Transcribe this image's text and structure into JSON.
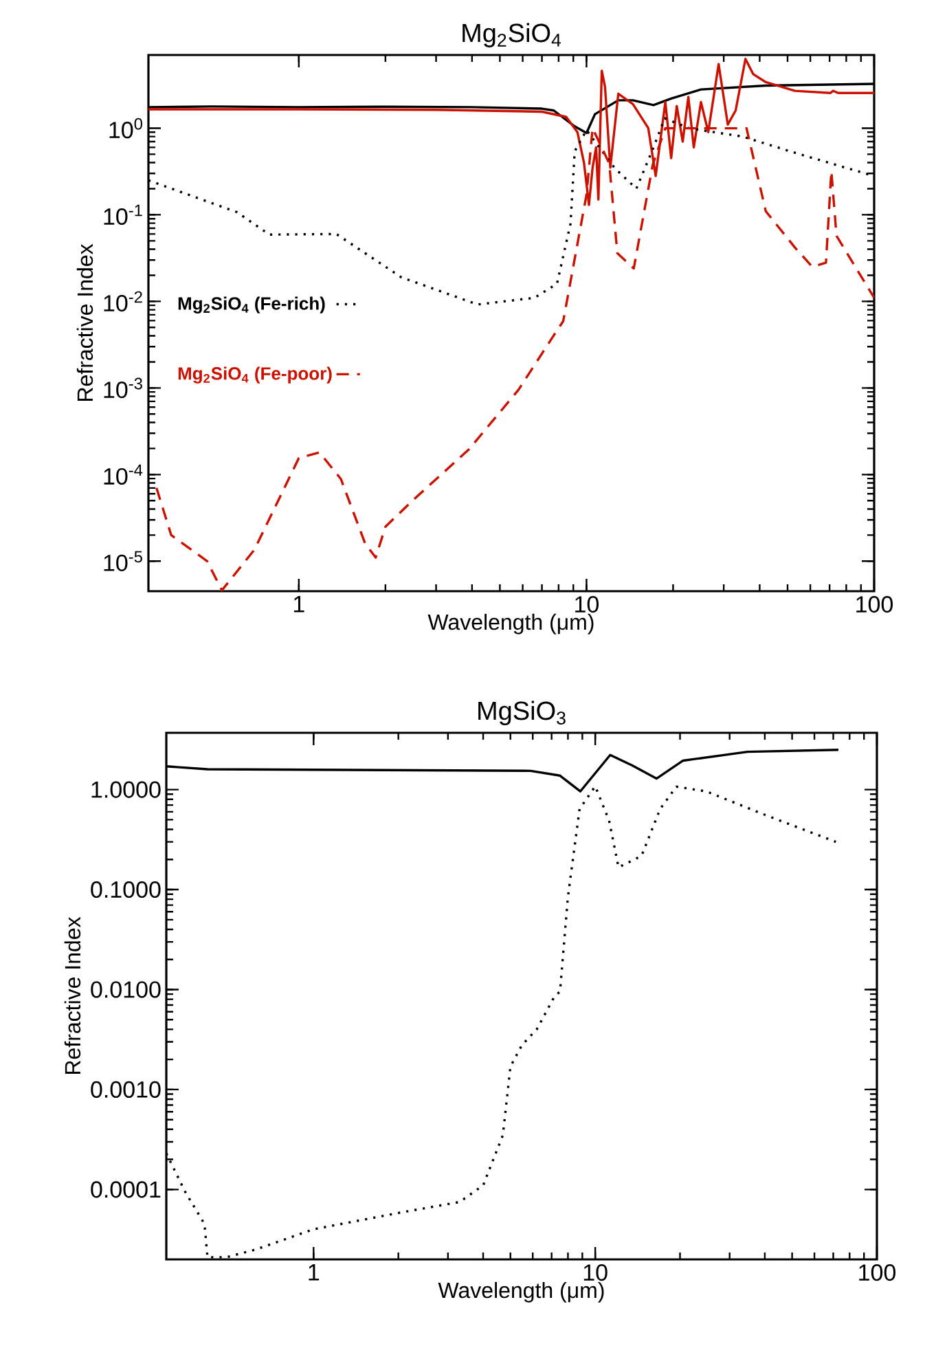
{
  "chart_data": [
    {
      "type": "line",
      "title": "Mg$_{2}$SiO$_{4}$",
      "xlabel": "Wavelength (μm)",
      "ylabel": "Refractive Index",
      "log": "xy",
      "legend": "left",
      "xlim": [
        0.3,
        100
      ],
      "ylim": [
        4.5e-06,
        7
      ],
      "xticks": [
        1,
        10,
        100
      ],
      "yticks": [
        {
          "value": 1e-05,
          "label": "10$^{-5}$"
        },
        {
          "value": 0.0001,
          "label": "10$^{-4}$"
        },
        {
          "value": 0.001,
          "label": "10$^{-3}$"
        },
        {
          "value": 0.01,
          "label": "10$^{-2}$"
        },
        {
          "value": 0.1,
          "label": "10$^{-1}$"
        },
        {
          "value": 1,
          "label": "10$^{0}$"
        }
      ],
      "series": [
        {
          "color": "#000000",
          "line_style": "solid",
          "x": [
            0.3,
            0.5,
            1,
            2,
            4,
            7,
            7.7,
            9.1,
            10,
            10.7,
            12.9,
            14.5,
            17.1,
            19.7,
            25,
            42,
            100
          ],
          "values": [
            1.75,
            1.78,
            1.75,
            1.77,
            1.75,
            1.68,
            1.6,
            1.05,
            0.88,
            1.45,
            2.1,
            2.1,
            1.85,
            2.2,
            2.8,
            3.1,
            3.25
          ]
        },
        {
          "color": "#cc1100",
          "line_style": "solid",
          "x": [
            0.3,
            1,
            3,
            7,
            8.5,
            9.3,
            9.8,
            10.2,
            10.5,
            10.8,
            11.0,
            11.3,
            11.6,
            12.1,
            12.9,
            14.5,
            16.4,
            17.4,
            18.8,
            19.7,
            20.6,
            21.6,
            22.6,
            23.6,
            25,
            26.5,
            28.8,
            31,
            33,
            35.7,
            38,
            42,
            53,
            70.5,
            72,
            75,
            100
          ],
          "values": [
            1.65,
            1.65,
            1.63,
            1.55,
            1.35,
            0.9,
            0.4,
            0.13,
            0.35,
            0.6,
            0.15,
            4.6,
            3.0,
            0.35,
            2.5,
            1.9,
            1.0,
            0.28,
            2.0,
            0.45,
            1.8,
            0.7,
            2.3,
            0.6,
            2.0,
            0.9,
            5.5,
            1.1,
            1.6,
            6.3,
            4.2,
            3.4,
            2.7,
            2.55,
            2.7,
            2.55,
            2.55
          ]
        },
        {
          "name": "Mg$_{2}$SiO$_{4}$ (Fe-rich)",
          "color": "#000000",
          "line_style": "dotted",
          "x": [
            0.3,
            0.61,
            0.79,
            1.35,
            2.27,
            4.18,
            6.6,
            7.9,
            8.8,
            9.1,
            10,
            12.5,
            14.9,
            17.1,
            18.7,
            22.7,
            34.9,
            53,
            100
          ],
          "values": [
            0.25,
            0.107,
            0.059,
            0.06,
            0.019,
            0.0092,
            0.011,
            0.016,
            0.079,
            0.54,
            0.95,
            0.35,
            0.2,
            0.6,
            1.3,
            1.0,
            0.8,
            0.52,
            0.28
          ]
        },
        {
          "name": "Mg$_{2}$SiO$_{4}$ (Fe-poor)",
          "color": "#cc1100",
          "line_style": "dashed",
          "x": [
            0.32,
            0.36,
            0.48,
            0.54,
            0.7,
            1.0,
            1.18,
            1.4,
            1.7,
            1.85,
            2.0,
            2.5,
            3.9,
            5.8,
            7.6,
            8.3,
            10,
            10.5,
            12,
            12.8,
            14.6,
            17,
            18.8,
            25,
            33,
            36,
            42,
            53,
            61,
            68,
            71,
            74,
            100
          ],
          "values": [
            7e-05,
            2e-05,
            1e-05,
            4.6e-06,
            1.35e-05,
            0.000155,
            0.00018,
            8.9e-05,
            1.6e-05,
            1.1e-05,
            2.5e-05,
            5.1e-05,
            0.000195,
            0.00095,
            0.0038,
            0.0059,
            0.17,
            1.0,
            0.39,
            0.036,
            0.024,
            0.38,
            1.0,
            1.0,
            1.0,
            1.0,
            0.11,
            0.042,
            0.025,
            0.028,
            0.32,
            0.057,
            0.011
          ]
        }
      ]
    },
    {
      "type": "line",
      "title": "MgSiO$_{3}$",
      "xlabel": "Wavelength (μm)",
      "ylabel": "Refractive Index",
      "log": "xy",
      "xlim": [
        0.3,
        100
      ],
      "ylim": [
        2e-05,
        3.7
      ],
      "xticks": [
        1,
        10,
        100
      ],
      "yticks": [
        {
          "value": 0.0001,
          "label": "0.0001"
        },
        {
          "value": 0.001,
          "label": "0.0010"
        },
        {
          "value": 0.01,
          "label": "0.0100"
        },
        {
          "value": 0.1,
          "label": "0.1000"
        },
        {
          "value": 1,
          "label": "1.0000"
        }
      ],
      "series": [
        {
          "color": "#000000",
          "line_style": "solid",
          "x": [
            0.3,
            0.42,
            5.9,
            7.5,
            8.85,
            11.3,
            13.5,
            16.5,
            20.5,
            34.7,
            73
          ],
          "values": [
            1.71,
            1.6,
            1.54,
            1.38,
            0.96,
            2.22,
            1.75,
            1.29,
            1.95,
            2.39,
            2.5
          ]
        },
        {
          "color": "#000000",
          "line_style": "dotted",
          "x": [
            0.3,
            0.35,
            0.41,
            0.42,
            0.49,
            0.62,
            1.0,
            2.05,
            3.3,
            4.0,
            4.7,
            5.0,
            5.5,
            6.2,
            7.13,
            7.5,
            8.0,
            8.8,
            10,
            11.2,
            12.1,
            14.6,
            17,
            19.4,
            24.8,
            40,
            71.5
          ],
          "values": [
            0.00023,
            9.5e-05,
            4.5e-05,
            2.1e-05,
            2.1e-05,
            2.5e-05,
            4e-05,
            5.9e-05,
            7.5e-05,
            0.00011,
            0.00035,
            0.0017,
            0.0028,
            0.004,
            0.0083,
            0.0096,
            0.085,
            0.64,
            1.08,
            0.49,
            0.167,
            0.217,
            0.64,
            1.07,
            0.96,
            0.56,
            0.3
          ]
        }
      ]
    }
  ]
}
